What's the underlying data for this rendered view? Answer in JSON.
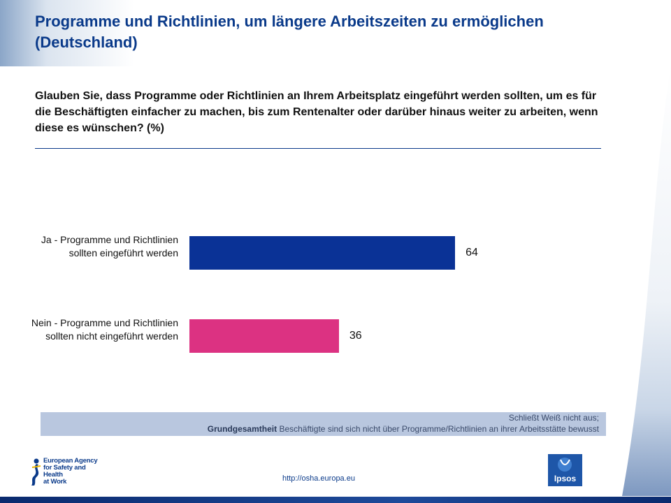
{
  "header": {
    "title": "Programme und Richtlinien, um längere Arbeitszeiten zu ermöglichen (Deutschland)",
    "question": "Glauben Sie, dass Programme oder Richtlinien an Ihrem Arbeitsplatz eingeführt werden sollten, um es für die Beschäftigten einfacher zu machen, bis zum Rentenalter oder darüber hinaus weiter zu arbeiten, wenn diese es wünschen?  (%)"
  },
  "chart_data": {
    "type": "bar",
    "orientation": "horizontal",
    "categories": [
      "Ja - Programme und Richtlinien sollten eingeführt werden",
      "Nein - Programme und Richtlinien sollten nicht eingeführt werden"
    ],
    "values": [
      64,
      36
    ],
    "value_labels": [
      "64",
      "36"
    ],
    "colors": [
      "#0a3296",
      "#dc3282"
    ],
    "xlim": [
      0,
      100
    ],
    "grid": false,
    "legend": "none"
  },
  "note": {
    "line1": "Schließt Weiß nicht aus;",
    "base_label": "Grundgesamtheit",
    "base_text": " Beschäftigte sind sich nicht über Programme/Richtlinien an ihrer Arbeitsstätte bewusst"
  },
  "footer": {
    "osha_logo_text": "European Agency for Safety and Health at Work",
    "url": "http://osha.europa.eu",
    "ipsos_logo_text": "Ipsos"
  }
}
